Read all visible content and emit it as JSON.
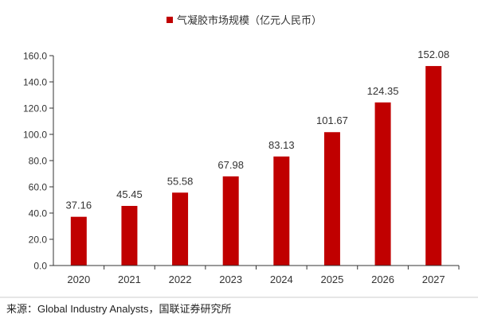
{
  "chart_data": {
    "type": "bar",
    "legend_label": "气凝胶市场规模（亿元人民币）",
    "legend_position": "top-center",
    "categories": [
      "2020",
      "2021",
      "2022",
      "2023",
      "2024",
      "2025",
      "2026",
      "2027"
    ],
    "series": [
      {
        "name": "气凝胶市场规模（亿元人民币）",
        "values": [
          37.16,
          45.45,
          55.58,
          67.98,
          83.13,
          101.67,
          124.35,
          152.08
        ],
        "data_labels": [
          "37.16",
          "45.45",
          "55.58",
          "67.98",
          "83.13",
          "101.67",
          "124.35",
          "152.08"
        ]
      }
    ],
    "ylim": [
      0,
      160
    ],
    "y_ticks": [
      "0.0",
      "20.0",
      "40.0",
      "60.0",
      "80.0",
      "100.0",
      "120.0",
      "140.0",
      "160.0"
    ],
    "grid": false,
    "colors": {
      "bar": "#c00000",
      "text": "#333333",
      "axis": "#333333"
    }
  },
  "footer": {
    "source_text": "来源：Global Industry Analysts，国联证券研究所"
  }
}
